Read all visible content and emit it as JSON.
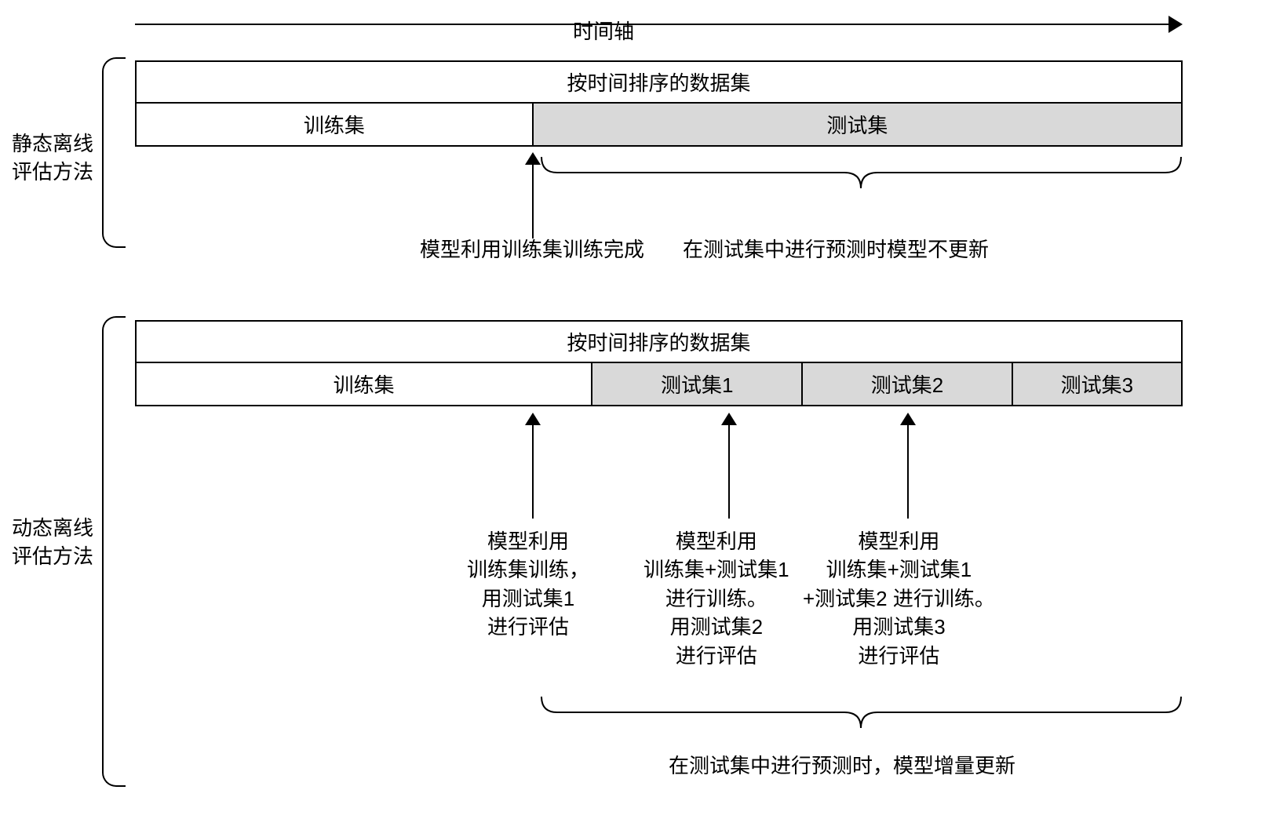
{
  "colors": {
    "background": "#ffffff",
    "border": "#000000",
    "train_bg": "#ffffff",
    "test_bg": "#d9d9d9",
    "text": "#000000"
  },
  "typography": {
    "font_family": "PingFang SC, Microsoft YaHei, sans-serif",
    "font_size": 26,
    "line_height": 1.4
  },
  "timeline": {
    "label": "时间轴"
  },
  "static_section": {
    "title_line1": "静态离线",
    "title_line2": "评估方法",
    "header": "按时间排序的数据集",
    "train_label": "训练集",
    "test_label": "测试集",
    "train_width_pct": 38,
    "test_width_pct": 62,
    "arrow_label": "模型利用训练集训练完成",
    "brace_label": "在测试集中进行预测时模型不更新"
  },
  "dynamic_section": {
    "title_line1": "动态离线",
    "title_line2": "评估方法",
    "header": "按时间排序的数据集",
    "segments": [
      {
        "label": "训练集",
        "width_pct": 38,
        "bg": "#ffffff"
      },
      {
        "label": "测试集1",
        "width_pct": 17.5,
        "bg": "#d9d9d9"
      },
      {
        "label": "测试集2",
        "width_pct": 17.5,
        "bg": "#d9d9d9"
      },
      {
        "label": "测试集3",
        "width_pct": 14,
        "bg": "#d9d9d9"
      }
    ],
    "arrows": [
      {
        "text": "模型利用\n训练集训练，\n用测试集1\n进行评估"
      },
      {
        "text": "模型利用\n训练集+测试集1\n进行训练。\n用测试集2\n进行评估"
      },
      {
        "text": "模型利用\n训练集+测试集1\n+测试集2 进行训练。\n用测试集3\n进行评估"
      }
    ],
    "brace_label": "在测试集中进行预测时，模型增量更新"
  }
}
